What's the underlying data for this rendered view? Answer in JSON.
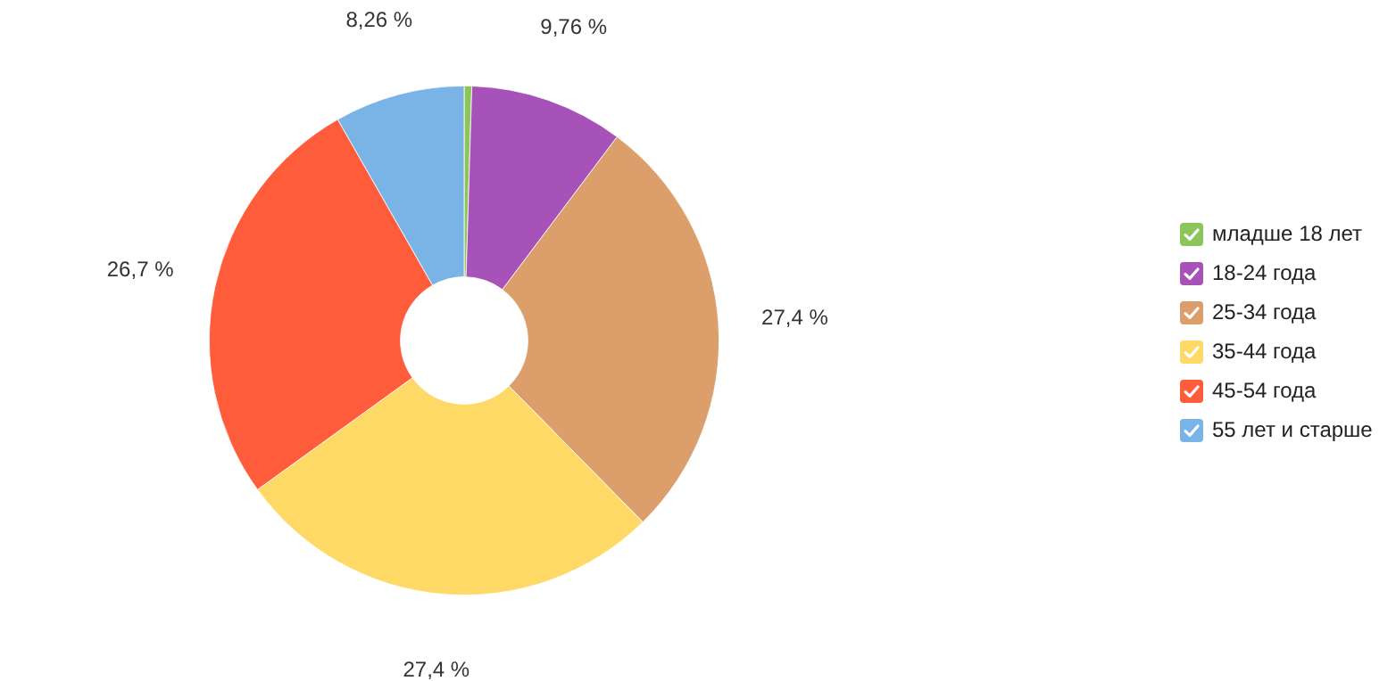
{
  "chart_data": {
    "type": "donut",
    "categories": [
      "младше 18 лет",
      "18-24 года",
      "25-34 года",
      "35-44 года",
      "45-54 года",
      "55 лет и старше"
    ],
    "values": [
      0.48,
      9.76,
      27.4,
      27.4,
      26.7,
      8.26
    ],
    "value_labels": [
      null,
      "9,76 %",
      "27,4 %",
      "27,4 %",
      "26,7 %",
      "8,26 %"
    ],
    "colors": [
      "#8cc65a",
      "#a652b9",
      "#dc9f6b",
      "#ffd966",
      "#ff5c3c",
      "#7ab4e6"
    ],
    "legend": "right"
  }
}
